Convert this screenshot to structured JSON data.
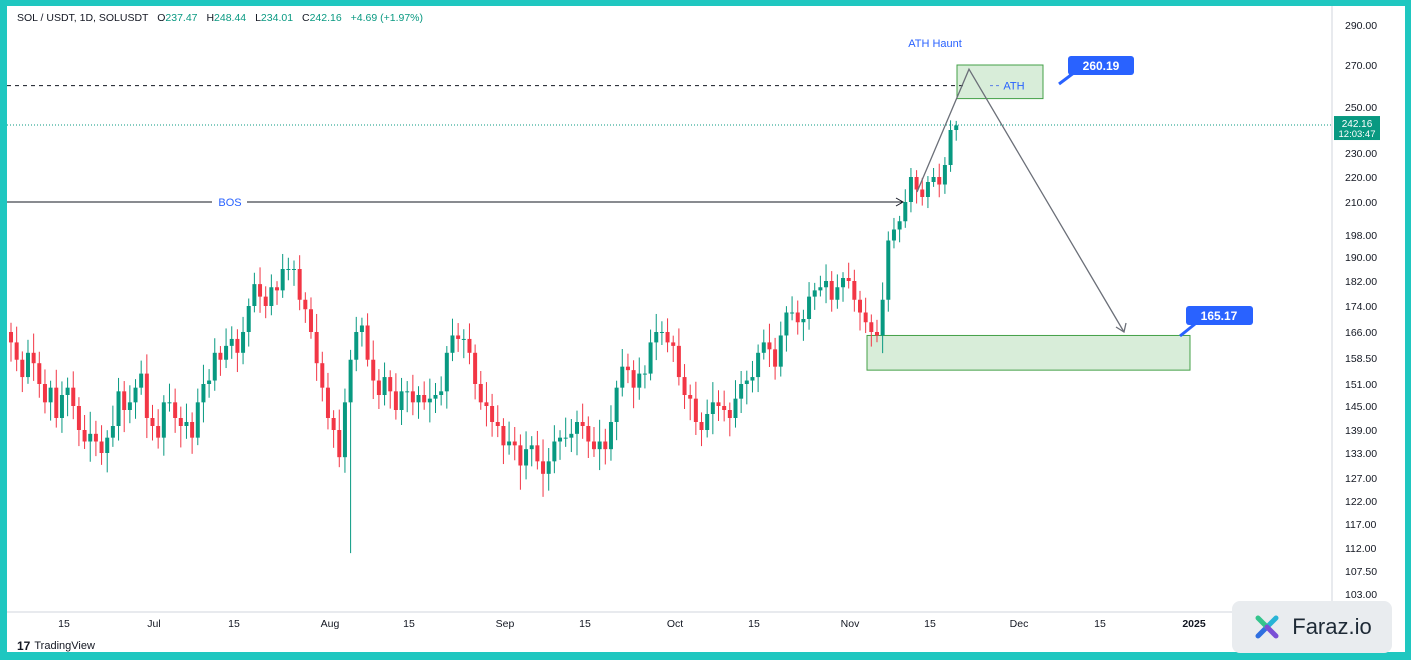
{
  "header": {
    "symbol": "SOL / USDT, 1D, SOLUSDT",
    "open_label": "O",
    "open": "237.47",
    "high_label": "H",
    "high": "248.44",
    "low_label": "L",
    "low": "234.01",
    "close_label": "C",
    "close": "242.16",
    "change": "+4.69 (+1.97%)"
  },
  "chart_data": {
    "type": "candlestick",
    "y_ticks": [
      "290.00",
      "270.00",
      "250.00",
      "230.00",
      "220.00",
      "210.00",
      "198.00",
      "190.00",
      "182.00",
      "174.00",
      "166.00",
      "158.50",
      "151.00",
      "145.00",
      "139.00",
      "133.00",
      "127.00",
      "122.00",
      "117.00",
      "112.00",
      "107.50",
      "103.00"
    ],
    "x_ticks": [
      "15",
      "Jul",
      "15",
      "Aug",
      "15",
      "Sep",
      "15",
      "Oct",
      "15",
      "Nov",
      "15",
      "Dec",
      "15",
      "2025"
    ],
    "price_label": {
      "value": "242.16",
      "countdown": "12:03:47"
    },
    "annotations": {
      "bos": "BOS",
      "ath_haunt": "ATH Haunt",
      "ath": "ATH",
      "ath_level": "260.19",
      "target_level": "165.17"
    },
    "closes": [
      163,
      158,
      153,
      160,
      157,
      151,
      146,
      150,
      142,
      148,
      150,
      145,
      139,
      136,
      138,
      136,
      133,
      137,
      140,
      149,
      144,
      146,
      150,
      154,
      142,
      140,
      137,
      146,
      146,
      142,
      140,
      141,
      137,
      146,
      151,
      152,
      160,
      158,
      162,
      164,
      160,
      166,
      174,
      181,
      177,
      174,
      180,
      179,
      186,
      186,
      186,
      176,
      173,
      166,
      157,
      150,
      142,
      139,
      132,
      146,
      158,
      166,
      168,
      158,
      152,
      148,
      153,
      149,
      144,
      149,
      149,
      146,
      148,
      146,
      147,
      148,
      149,
      160,
      165,
      164,
      164,
      160,
      151,
      146,
      145,
      141,
      140,
      135,
      136,
      135,
      130,
      134,
      135,
      131,
      128,
      131,
      136,
      137,
      137,
      138,
      141,
      140,
      136,
      134,
      136,
      134,
      141,
      150,
      156,
      155,
      150,
      154,
      154,
      163,
      166,
      166,
      163,
      162,
      153,
      148,
      147,
      141,
      139,
      143,
      146,
      145,
      144,
      142,
      147,
      151,
      152,
      153,
      160,
      163,
      161,
      156,
      165,
      172,
      172,
      169,
      170,
      177,
      179,
      180,
      182,
      176,
      180,
      183,
      182,
      176,
      172,
      169,
      166,
      165,
      176,
      196,
      200,
      203,
      210,
      220,
      215,
      212,
      218,
      220,
      217,
      225,
      240,
      242
    ],
    "ath_zone_high": 270,
    "ath_zone_low": 254,
    "target_zone_high": 165,
    "target_zone_low": 155
  },
  "branding": {
    "tradingview": "TradingView",
    "faraz": "Faraz.io"
  }
}
